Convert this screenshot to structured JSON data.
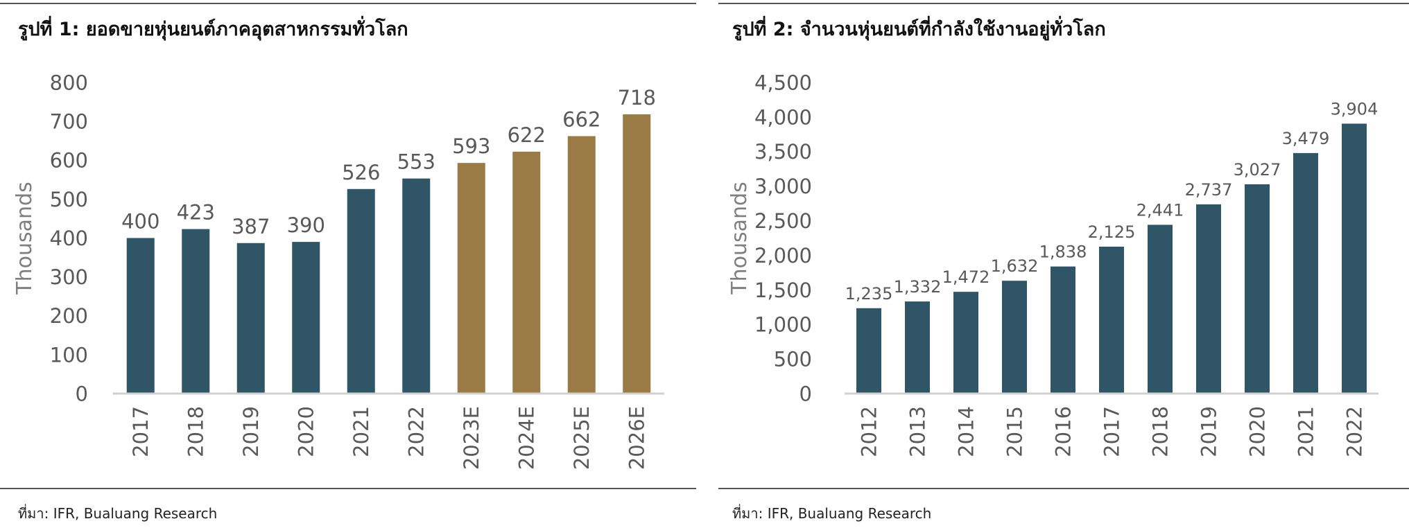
{
  "colors": {
    "actual": "#2f5566",
    "estimate": "#9a7b45",
    "axis": "#d0d0d0",
    "tick_text": "#595959"
  },
  "figure1": {
    "title": "รูปที่ 1: ยอดขายหุ่นยนต์ภาคอุตสาหกรรมทั่วโลก",
    "source": "ที่มา: IFR,  Bualuang Research"
  },
  "figure2": {
    "title": "รูปที่ 2: จำนวนหุ่นยนต์ที่กำลังใช้งานอยู่ทั่วโลก",
    "source": "ที่มา: IFR,  Bualuang Research"
  },
  "chart_data": [
    {
      "type": "bar",
      "title": "รูปที่ 1: ยอดขายหุ่นยนต์ภาคอุตสาหกรรมทั่วโลก",
      "xlabel": "",
      "ylabel": "Thousands",
      "categories": [
        "2017",
        "2018",
        "2019",
        "2020",
        "2021",
        "2022",
        "2023E",
        "2024E",
        "2025E",
        "2026E"
      ],
      "values": [
        400,
        423,
        387,
        390,
        526,
        553,
        593,
        622,
        662,
        718
      ],
      "labels": [
        "400",
        "423",
        "387",
        "390",
        "526",
        "553",
        "593",
        "622",
        "662",
        "718"
      ],
      "estimate": [
        false,
        false,
        false,
        false,
        false,
        false,
        true,
        true,
        true,
        true
      ],
      "ylim": [
        0,
        800
      ],
      "yticks": [
        0,
        100,
        200,
        300,
        400,
        500,
        600,
        700,
        800
      ],
      "ytick_labels": [
        "0",
        "100",
        "200",
        "300",
        "400",
        "500",
        "600",
        "700",
        "800"
      ],
      "grid": false,
      "legend": "none"
    },
    {
      "type": "bar",
      "title": "รูปที่ 2: จำนวนหุ่นยนต์ที่กำลังใช้งานอยู่ทั่วโลก",
      "xlabel": "",
      "ylabel": "Thousands",
      "categories": [
        "2012",
        "2013",
        "2014",
        "2015",
        "2016",
        "2017",
        "2018",
        "2019",
        "2020",
        "2021",
        "2022"
      ],
      "values": [
        1235,
        1332,
        1472,
        1632,
        1838,
        2125,
        2441,
        2737,
        3027,
        3479,
        3904
      ],
      "labels": [
        "1,235",
        "1,332",
        "1,472",
        "1,632",
        "1,838",
        "2,125",
        "2,441",
        "2,737",
        "3,027",
        "3,479",
        "3,904"
      ],
      "estimate": [
        false,
        false,
        false,
        false,
        false,
        false,
        false,
        false,
        false,
        false,
        false
      ],
      "ylim": [
        0,
        4500
      ],
      "yticks": [
        0,
        500,
        1000,
        1500,
        2000,
        2500,
        3000,
        3500,
        4000,
        4500
      ],
      "ytick_labels": [
        "0",
        "500",
        "1,000",
        "1,500",
        "2,000",
        "2,500",
        "3,000",
        "3,500",
        "4,000",
        "4,500"
      ],
      "grid": false,
      "legend": "none"
    }
  ]
}
